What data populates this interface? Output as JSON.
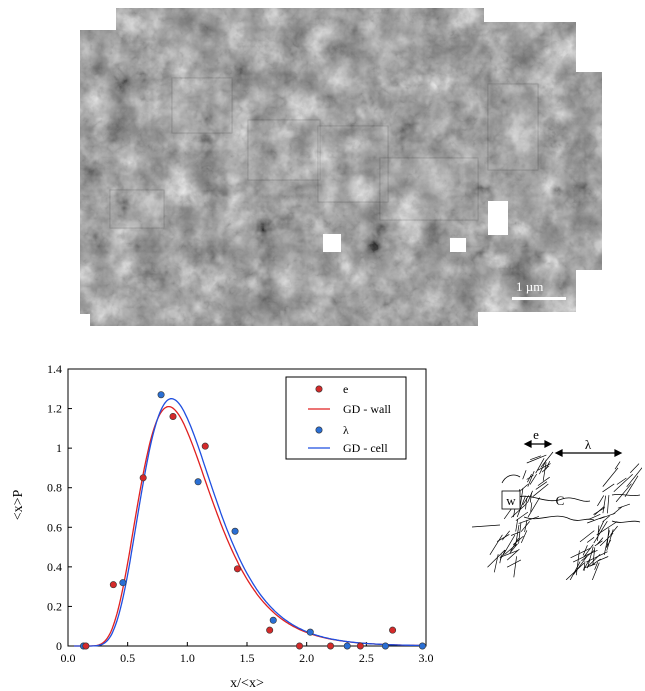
{
  "micrograph": {
    "scale_bar_label": "1 µm"
  },
  "chart_data": {
    "type": "scatter",
    "xlabel": "x/<x>",
    "ylabel": "<x>P",
    "xlim": [
      0.0,
      3.0
    ],
    "ylim": [
      0,
      1.4
    ],
    "x_ticks": [
      "0.0",
      "0.5",
      "1.0",
      "1.5",
      "2.0",
      "2.5",
      "3.0"
    ],
    "y_ticks": [
      "0",
      "0.2",
      "0.4",
      "0.6",
      "0.8",
      "1",
      "1.2",
      "1.4"
    ],
    "legend_position": "top-right",
    "colors": {
      "e": "#d42a2a",
      "lambda": "#2a6fd4",
      "gd_wall": "#e02020",
      "gd_cell": "#1f4fe0"
    },
    "series": [
      {
        "name": "e",
        "kind": "points",
        "x": [
          0.15,
          0.38,
          0.63,
          0.88,
          1.15,
          1.42,
          1.69,
          1.94,
          2.2,
          2.45,
          2.72
        ],
        "y": [
          0.0,
          0.31,
          0.85,
          1.16,
          1.01,
          0.39,
          0.08,
          0.0,
          0.0,
          0.0,
          0.08
        ]
      },
      {
        "name": "GD - wall",
        "kind": "line"
      },
      {
        "name": "λ",
        "kind": "points",
        "x": [
          0.13,
          0.46,
          0.78,
          1.09,
          1.4,
          1.72,
          2.03,
          2.34,
          2.66,
          2.97
        ],
        "y": [
          0.0,
          0.32,
          1.27,
          0.83,
          0.58,
          0.13,
          0.07,
          0.0,
          0.0,
          0.0
        ]
      },
      {
        "name": "GD - cell",
        "kind": "line"
      }
    ]
  },
  "schematic": {
    "label_e": "e",
    "label_lambda": "λ",
    "label_wall": "w",
    "label_cell": "C"
  }
}
